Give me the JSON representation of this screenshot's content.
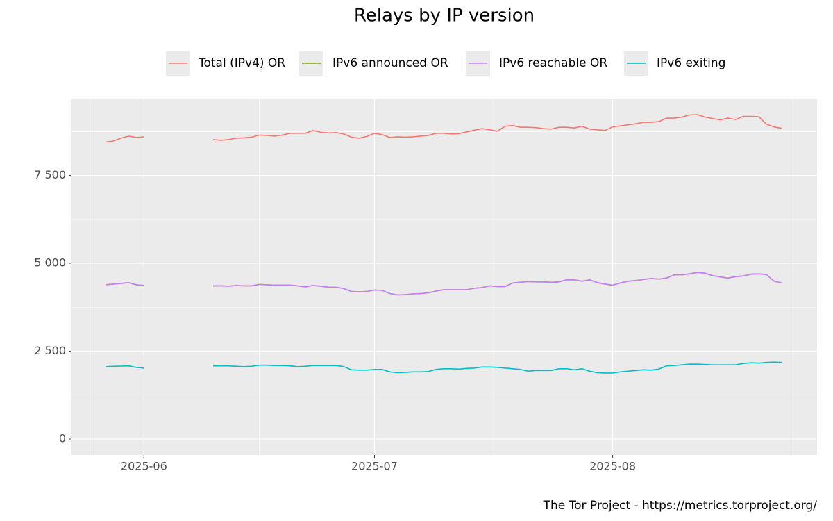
{
  "chart_data": {
    "type": "line",
    "title": "Relays by IP version",
    "caption": "The Tor Project - https://metrics.torproject.org/",
    "categories": [
      null,
      null,
      null,
      null,
      null,
      "2025-06",
      null,
      null,
      null,
      null,
      null,
      null,
      null,
      null,
      null,
      null,
      null,
      null,
      null,
      null,
      null,
      null,
      null,
      null,
      null,
      null,
      null,
      null,
      null,
      null,
      null,
      null,
      null,
      null,
      null,
      "2025-07",
      null,
      null,
      null,
      null,
      null,
      null,
      null,
      null,
      null,
      null,
      null,
      null,
      null,
      null,
      null,
      null,
      null,
      null,
      null,
      null,
      null,
      null,
      null,
      null,
      null,
      null,
      null,
      null,
      null,
      null,
      "2025-08",
      null,
      null,
      null,
      null,
      null,
      null,
      null,
      null,
      null,
      null,
      null,
      null,
      null,
      null,
      null,
      null,
      null,
      null,
      null,
      null,
      null,
      null
    ],
    "series": [
      {
        "name": "Total (IPv4) OR",
        "color": "#f8766d",
        "values": [
          8450,
          8480,
          8560,
          8620,
          8580,
          8600,
          null,
          null,
          null,
          null,
          null,
          null,
          null,
          null,
          8520,
          8500,
          8520,
          8560,
          8570,
          8590,
          8650,
          8640,
          8620,
          8650,
          8700,
          8700,
          8700,
          8780,
          8730,
          8710,
          8720,
          8680,
          8590,
          8560,
          8610,
          8700,
          8660,
          8580,
          8600,
          8590,
          8600,
          8620,
          8640,
          8700,
          8700,
          8680,
          8690,
          8740,
          8790,
          8830,
          8800,
          8760,
          8900,
          8920,
          8870,
          8870,
          8860,
          8830,
          8820,
          8870,
          8870,
          8850,
          8900,
          8820,
          8800,
          8780,
          8880,
          8910,
          8940,
          8970,
          9010,
          9010,
          9030,
          9130,
          9130,
          9160,
          9220,
          9230,
          9160,
          9120,
          9080,
          9130,
          9090,
          9180,
          9180,
          9170,
          8960,
          8880,
          8840
        ]
      },
      {
        "name": "IPv6 announced OR",
        "color": "#7cae00",
        "values": [
          4390,
          4410,
          4430,
          4450,
          4390,
          4370,
          null,
          null,
          null,
          null,
          null,
          null,
          null,
          null,
          4360,
          4360,
          4350,
          4370,
          4360,
          4360,
          4400,
          4390,
          4380,
          4380,
          4380,
          4360,
          4330,
          4370,
          4350,
          4320,
          4320,
          4280,
          4200,
          4190,
          4200,
          4240,
          4230,
          4140,
          4100,
          4110,
          4130,
          4140,
          4160,
          4210,
          4250,
          4250,
          4250,
          4250,
          4290,
          4310,
          4360,
          4340,
          4340,
          4440,
          4460,
          4480,
          4470,
          4470,
          4460,
          4470,
          4530,
          4530,
          4490,
          4530,
          4450,
          4410,
          4380,
          4440,
          4490,
          4510,
          4540,
          4570,
          4550,
          4580,
          4670,
          4670,
          4700,
          4740,
          4720,
          4650,
          4610,
          4580,
          4620,
          4640,
          4690,
          4700,
          4680,
          4490,
          4440
        ]
      },
      {
        "name": "IPv6 reachable OR",
        "color": "#c77cff",
        "values": [
          4390,
          4410,
          4430,
          4450,
          4390,
          4370,
          null,
          null,
          null,
          null,
          null,
          null,
          null,
          null,
          4360,
          4360,
          4350,
          4370,
          4360,
          4360,
          4400,
          4390,
          4380,
          4380,
          4380,
          4360,
          4330,
          4370,
          4350,
          4320,
          4320,
          4280,
          4200,
          4190,
          4200,
          4240,
          4230,
          4140,
          4100,
          4110,
          4130,
          4140,
          4160,
          4210,
          4250,
          4250,
          4250,
          4250,
          4290,
          4310,
          4360,
          4340,
          4340,
          4440,
          4460,
          4480,
          4470,
          4470,
          4460,
          4470,
          4530,
          4530,
          4490,
          4530,
          4450,
          4410,
          4380,
          4440,
          4490,
          4510,
          4540,
          4570,
          4550,
          4580,
          4670,
          4670,
          4700,
          4740,
          4720,
          4650,
          4610,
          4580,
          4620,
          4640,
          4690,
          4700,
          4680,
          4490,
          4440
        ]
      },
      {
        "name": "IPv6 exiting",
        "color": "#00bfc4",
        "values": [
          2060,
          2070,
          2075,
          2080,
          2040,
          2020,
          null,
          null,
          null,
          null,
          null,
          null,
          null,
          null,
          2080,
          2080,
          2080,
          2070,
          2060,
          2070,
          2100,
          2100,
          2090,
          2090,
          2080,
          2060,
          2070,
          2090,
          2090,
          2090,
          2090,
          2060,
          1970,
          1960,
          1960,
          1980,
          1980,
          1910,
          1890,
          1900,
          1910,
          1910,
          1920,
          1980,
          2000,
          2000,
          1990,
          2010,
          2020,
          2050,
          2050,
          2040,
          2020,
          2000,
          1980,
          1930,
          1950,
          1950,
          1950,
          2000,
          2000,
          1970,
          2000,
          1930,
          1890,
          1880,
          1880,
          1910,
          1930,
          1950,
          1970,
          1960,
          1990,
          2080,
          2090,
          2110,
          2130,
          2130,
          2120,
          2110,
          2110,
          2110,
          2110,
          2150,
          2170,
          2160,
          2180,
          2190,
          2180
        ]
      }
    ],
    "ylim": [
      -455,
      9665
    ],
    "yticks": [
      0,
      {
        "value": 2500,
        "label": "2 500"
      },
      {
        "value": 5000,
        "label": "5 000"
      },
      {
        "value": 7500,
        "label": "7 500"
      }
    ],
    "grid": true,
    "legend": "top"
  }
}
